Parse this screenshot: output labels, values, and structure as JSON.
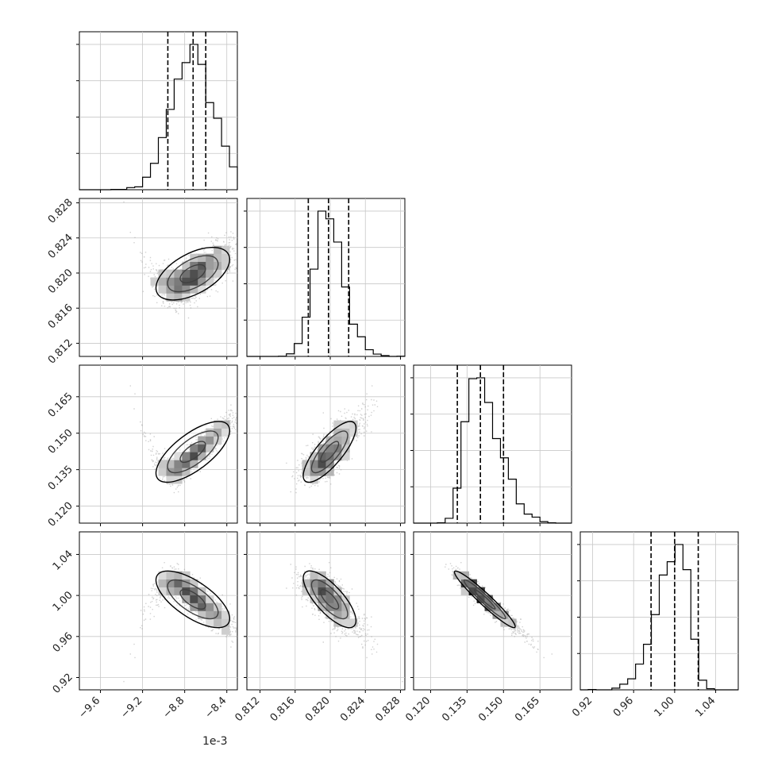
{
  "chart_data": {
    "type": "corner",
    "grid": true,
    "x_offset_text": "1e-3",
    "parameters": [
      {
        "range": [
          -9.8,
          -8.3
        ],
        "ticks": [
          -9.6,
          -9.2,
          -8.8,
          -8.4
        ],
        "tick_labels": [
          "−9.6",
          "−9.2",
          "−8.8",
          "−8.4"
        ],
        "mean": -8.73,
        "sd": 0.2,
        "quantiles": [
          -8.96,
          -8.72,
          -8.6
        ]
      },
      {
        "range": [
          0.8105,
          0.8285
        ],
        "ticks": [
          0.812,
          0.816,
          0.82,
          0.824,
          0.828
        ],
        "tick_labels": [
          "0.812",
          "0.816",
          "0.820",
          "0.824",
          "0.828"
        ],
        "mean": 0.8196,
        "sd": 0.0023,
        "quantiles": [
          0.8175,
          0.8198,
          0.8221
        ]
      },
      {
        "range": [
          0.113,
          0.178
        ],
        "ticks": [
          0.12,
          0.135,
          0.15,
          0.165
        ],
        "tick_labels": [
          "0.120",
          "0.135",
          "0.150",
          "0.165"
        ],
        "mean": 0.1405,
        "sd": 0.0095,
        "quantiles": [
          0.131,
          0.1405,
          0.15
        ]
      },
      {
        "range": [
          0.908,
          1.062
        ],
        "ticks": [
          0.92,
          0.96,
          1.0,
          1.04
        ],
        "tick_labels": [
          "0.92",
          "0.96",
          "1.00",
          "1.04"
        ],
        "mean": 1.0,
        "sd": 0.022,
        "quantiles": [
          0.977,
          1.0,
          1.023
        ]
      }
    ]
  }
}
